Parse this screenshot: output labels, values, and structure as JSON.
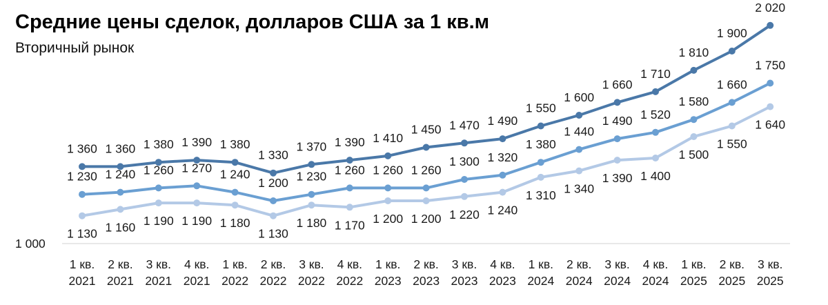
{
  "chart_data": {
    "type": "line",
    "title": "Средние цены сделок, долларов США за 1 кв.м",
    "subtitle": "Вторичный рынок",
    "categories": [
      [
        "1 кв.",
        "2021"
      ],
      [
        "2 кв.",
        "2021"
      ],
      [
        "3 кв.",
        "2021"
      ],
      [
        "4 кв.",
        "2021"
      ],
      [
        "1 кв.",
        "2022"
      ],
      [
        "2 кв.",
        "2022"
      ],
      [
        "3 кв.",
        "2022"
      ],
      [
        "4 кв.",
        "2022"
      ],
      [
        "1 кв.",
        "2023"
      ],
      [
        "2 кв.",
        "2023"
      ],
      [
        "3 кв.",
        "2023"
      ],
      [
        "4 кв.",
        "2023"
      ],
      [
        "1 кв.",
        "2024"
      ],
      [
        "2 кв.",
        "2024"
      ],
      [
        "3 кв.",
        "2024"
      ],
      [
        "4 кв.",
        "2024"
      ],
      [
        "1 кв.",
        "2025"
      ],
      [
        "2 кв.",
        "2025"
      ],
      [
        "3 кв.",
        "2025"
      ]
    ],
    "series": [
      {
        "color": "#4a78a8",
        "label_position": "above",
        "values": [
          1360,
          1360,
          1380,
          1390,
          1380,
          1330,
          1370,
          1390,
          1410,
          1450,
          1470,
          1490,
          1550,
          1600,
          1660,
          1710,
          1810,
          1900,
          2020
        ],
        "labels": [
          "1 360",
          "1 360",
          "1 380",
          "1 390",
          "1 380",
          "1 330",
          "1 370",
          "1 390",
          "1 410",
          "1 450",
          "1 470",
          "1 490",
          "1 550",
          "1 600",
          "1 660",
          "1 710",
          "1 810",
          "1 900",
          "2 020"
        ]
      },
      {
        "color": "#6a9fd2",
        "label_position": "above",
        "values": [
          1230,
          1240,
          1260,
          1270,
          1240,
          1200,
          1230,
          1260,
          1260,
          1260,
          1300,
          1320,
          1380,
          1440,
          1490,
          1520,
          1580,
          1660,
          1750
        ],
        "labels": [
          "1 230",
          "1 240",
          "1 260",
          "1 270",
          "1 240",
          "1 200",
          "1 230",
          "1 260",
          "1 260",
          "1 260",
          "1 300",
          "1 320",
          "1 380",
          "1 440",
          "1 490",
          "1 520",
          "1 580",
          "1 660",
          "1 750"
        ]
      },
      {
        "color": "#b3c9e6",
        "label_position": "below",
        "values": [
          1130,
          1160,
          1190,
          1190,
          1180,
          1130,
          1180,
          1170,
          1200,
          1200,
          1220,
          1240,
          1310,
          1340,
          1390,
          1400,
          1500,
          1550,
          1640
        ],
        "labels": [
          "1 130",
          "1 160",
          "1 190",
          "1 190",
          "1 180",
          "1 130",
          "1 180",
          "1 170",
          "1 200",
          "1 200",
          "1 220",
          "1 240",
          "1 310",
          "1 340",
          "1 390",
          "1 400",
          "1 500",
          "1 550",
          "1 640"
        ]
      }
    ],
    "y_axis": {
      "min": 1000,
      "min_label": "1 000"
    },
    "grid": false,
    "legend": "none"
  }
}
